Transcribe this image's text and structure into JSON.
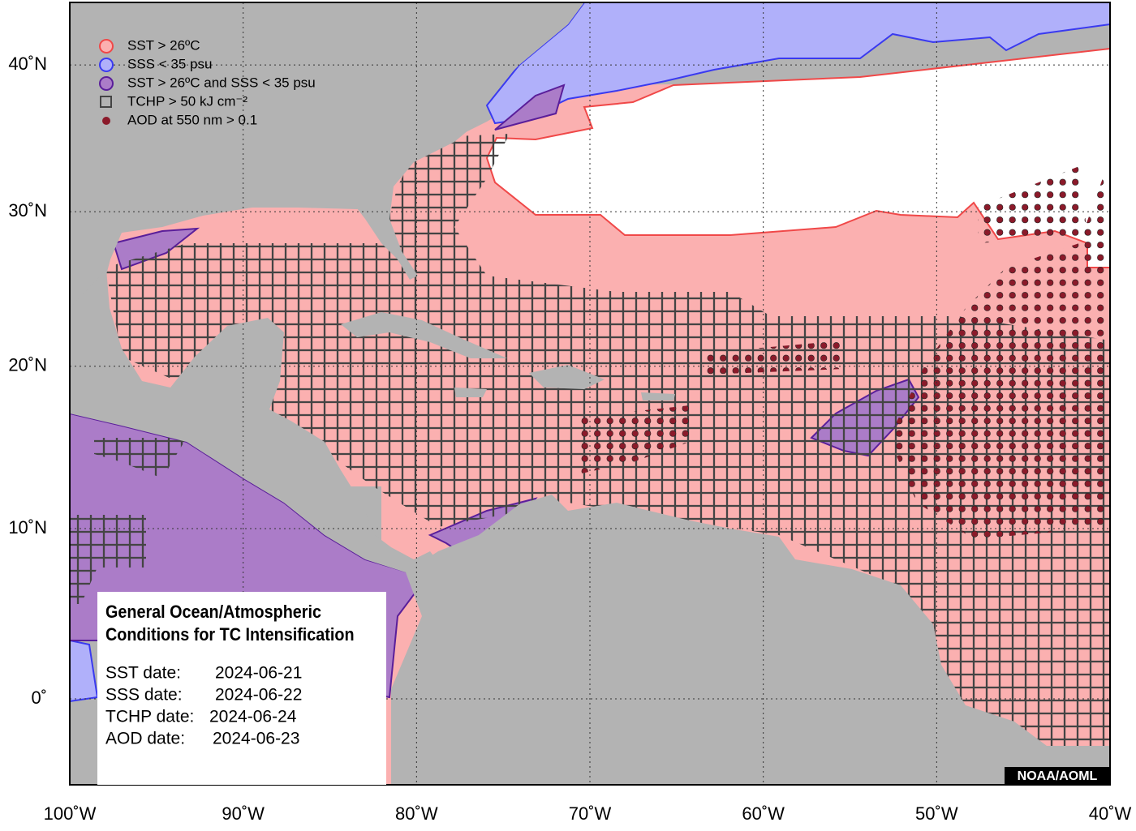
{
  "legend": [
    {
      "label": "SST > 26ºC"
    },
    {
      "label": "SSS < 35 psu"
    },
    {
      "label": "SST > 26ºC and SSS < 35 psu"
    },
    {
      "label": "TCHP > 50 kJ cm⁻²"
    },
    {
      "label": "AOD at 550 nm > 0.1"
    }
  ],
  "axes": {
    "x_ticks": [
      {
        "value": -100,
        "label": "100˚W"
      },
      {
        "value": -90,
        "label": "90˚W"
      },
      {
        "value": -80,
        "label": "80˚W"
      },
      {
        "value": -70,
        "label": "70˚W"
      },
      {
        "value": -60,
        "label": "60˚W"
      },
      {
        "value": -50,
        "label": "50˚W"
      },
      {
        "value": -40,
        "label": "40˚W"
      }
    ],
    "y_ticks": [
      {
        "value": 40,
        "label": "40˚N"
      },
      {
        "value": 30,
        "label": "30˚N"
      },
      {
        "value": 20,
        "label": "20˚N"
      },
      {
        "value": 10,
        "label": "10˚N"
      },
      {
        "value": 0,
        "label": "0˚"
      }
    ]
  },
  "info_box": {
    "title_line1": "General Ocean/Atmospheric",
    "title_line2": "Conditions for TC Intensification",
    "dates": [
      {
        "label": "SST date:",
        "value": "2024-06-21"
      },
      {
        "label": "SSS date:",
        "value": "2024-06-22"
      },
      {
        "label": "TCHP date:",
        "value": "2024-06-24"
      },
      {
        "label": "AOD date:",
        "value": "2024-06-23"
      }
    ]
  },
  "credit": "NOAA/AOML"
}
